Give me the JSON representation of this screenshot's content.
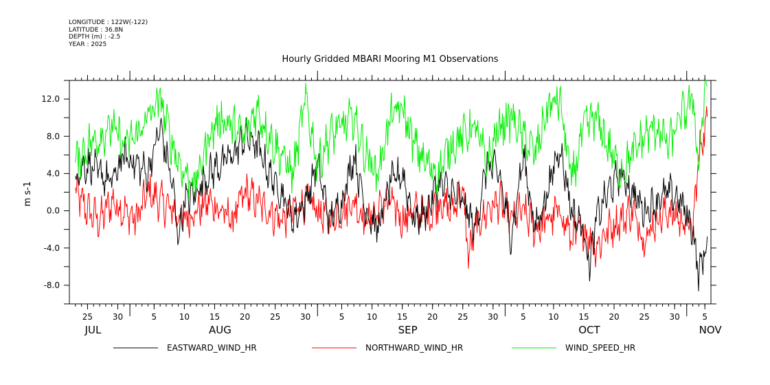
{
  "metadata": {
    "longitude": "LONGITUDE : 122W(-122)",
    "latitude": "LATITUDE : 36.8N",
    "depth": "DEPTH (m) : -2.5",
    "year": "YEAR : 2025"
  },
  "chart_data": {
    "type": "line",
    "title": "Hourly Gridded MBARI Mooring M1 Observations",
    "xlabel": "",
    "ylabel": "m s-1",
    "x_range_days": [
      0,
      106
    ],
    "x_origin_date": "2025-07-22",
    "ylim": [
      -10,
      14
    ],
    "y_ticks": [
      -8,
      -4,
      0,
      4,
      8,
      12
    ],
    "y_tick_labels": [
      "-8.0",
      "-4.0",
      "0.0",
      "4.0",
      "8.0",
      "12.0"
    ],
    "y_minor_ticks": [
      -10,
      -6,
      -2,
      2,
      6,
      10,
      14
    ],
    "day_ticks": [
      {
        "day": 3,
        "label": "25"
      },
      {
        "day": 8,
        "label": "30"
      },
      {
        "day": 14,
        "label": "5"
      },
      {
        "day": 19,
        "label": "10"
      },
      {
        "day": 24,
        "label": "15"
      },
      {
        "day": 29,
        "label": "20"
      },
      {
        "day": 34,
        "label": "25"
      },
      {
        "day": 39,
        "label": "30"
      },
      {
        "day": 45,
        "label": "5"
      },
      {
        "day": 50,
        "label": "10"
      },
      {
        "day": 55,
        "label": "15"
      },
      {
        "day": 60,
        "label": "20"
      },
      {
        "day": 65,
        "label": "25"
      },
      {
        "day": 70,
        "label": "30"
      },
      {
        "day": 75,
        "label": "5"
      },
      {
        "day": 80,
        "label": "10"
      },
      {
        "day": 85,
        "label": "15"
      },
      {
        "day": 90,
        "label": "20"
      },
      {
        "day": 95,
        "label": "25"
      },
      {
        "day": 100,
        "label": "30"
      },
      {
        "day": 105,
        "label": "5"
      }
    ],
    "month_boundaries": [
      10,
      41,
      72,
      102
    ],
    "month_labels": [
      {
        "day": 3,
        "label": "JUL"
      },
      {
        "day": 24,
        "label": "AUG"
      },
      {
        "day": 55,
        "label": "SEP"
      },
      {
        "day": 85,
        "label": "OCT"
      },
      {
        "day": 105,
        "label": "NOV"
      }
    ],
    "series": [
      {
        "name": "EASTWARD_WIND_HR",
        "color": "#000000",
        "x": [
          1,
          3,
          5,
          7,
          9,
          11,
          13,
          15,
          17,
          18,
          19,
          21,
          23,
          25,
          27,
          29,
          31,
          33,
          35,
          37,
          39,
          41,
          43,
          45,
          47,
          49,
          51,
          53,
          55,
          57,
          59,
          61,
          63,
          65,
          67,
          69,
          71,
          73,
          75,
          77,
          79,
          81,
          83,
          85,
          86,
          87,
          89,
          91,
          93,
          95,
          97,
          99,
          101,
          103,
          104,
          105
        ],
        "values": [
          4,
          5,
          4,
          3,
          6,
          5,
          4,
          9,
          3,
          -3,
          1,
          2,
          4,
          5,
          6,
          8,
          7,
          4,
          2,
          -1,
          1,
          5,
          -1,
          1,
          6,
          0,
          -2,
          3,
          4,
          -1,
          0,
          3,
          2,
          1,
          -2,
          5,
          4,
          -3,
          6,
          -2,
          2,
          7,
          0,
          -2,
          -6,
          -1,
          2,
          4,
          2,
          0,
          1,
          2,
          1,
          -2,
          -7,
          -4
        ]
      },
      {
        "name": "NORTHWARD_WIND_HR",
        "color": "#ff0000",
        "x": [
          1,
          3,
          5,
          7,
          9,
          11,
          13,
          15,
          17,
          19,
          21,
          23,
          25,
          27,
          29,
          31,
          33,
          35,
          37,
          39,
          41,
          43,
          45,
          47,
          49,
          51,
          53,
          55,
          57,
          59,
          61,
          63,
          65,
          66,
          67,
          69,
          71,
          73,
          75,
          77,
          79,
          81,
          83,
          85,
          87,
          89,
          91,
          93,
          95,
          97,
          99,
          101,
          103,
          104,
          105
        ],
        "values": [
          2,
          0,
          -1,
          1,
          0,
          -1,
          2,
          1,
          0,
          -1,
          0,
          1,
          0,
          -1,
          2,
          1,
          0,
          -1,
          0,
          1,
          0,
          -1,
          0,
          1,
          -1,
          0,
          1,
          -1,
          0,
          -1,
          1,
          0,
          2,
          -5,
          -2,
          0,
          1,
          -1,
          0,
          -2,
          -1,
          0,
          -3,
          -2,
          -4,
          -2,
          -1,
          0,
          -3,
          -1,
          0,
          -1,
          -2,
          6,
          9
        ]
      },
      {
        "name": "WIND_SPEED_HR",
        "color": "#00ee00",
        "x": [
          1,
          3,
          5,
          7,
          9,
          11,
          13,
          15,
          17,
          19,
          21,
          23,
          25,
          27,
          29,
          31,
          33,
          35,
          37,
          39,
          41,
          43,
          45,
          47,
          49,
          51,
          53,
          55,
          57,
          59,
          61,
          63,
          65,
          67,
          69,
          71,
          73,
          75,
          77,
          79,
          81,
          83,
          85,
          87,
          89,
          91,
          93,
          95,
          97,
          99,
          101,
          103,
          104,
          105
        ],
        "values": [
          5,
          7,
          8,
          9,
          7,
          8,
          10,
          12,
          7,
          4,
          3,
          8,
          10,
          9,
          8,
          11,
          8,
          6,
          4,
          12,
          5,
          8,
          9,
          10,
          6,
          4,
          10,
          11,
          7,
          5,
          4,
          7,
          8,
          9,
          5,
          9,
          10,
          8,
          6,
          11,
          12,
          3,
          9,
          10,
          7,
          4,
          6,
          8,
          9,
          7,
          10,
          12,
          5,
          13
        ]
      }
    ],
    "legend": [
      "EASTWARD_WIND_HR",
      "NORTHWARD_WIND_HR",
      "WIND_SPEED_HR"
    ],
    "legend_position": "bottom"
  }
}
